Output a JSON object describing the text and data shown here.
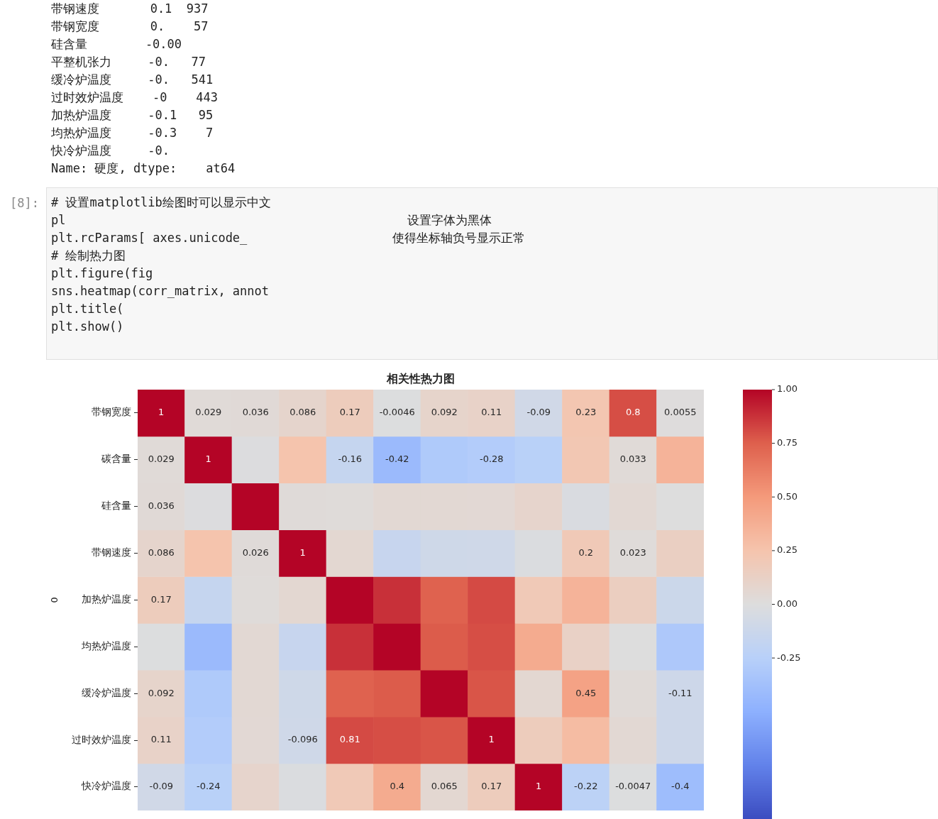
{
  "chart_data": {
    "type": "heatmap",
    "title": "相关性热力图",
    "ylabel": "0",
    "categories": [
      null,
      null,
      null,
      null,
      null,
      null,
      null,
      null,
      null,
      null,
      null,
      null
    ],
    "y_categories": [
      "带钢宽度",
      "碳含量",
      "硅含量",
      "带钢速度",
      "加热炉温度",
      "均热炉温度",
      "缓冷炉温度",
      "过时效炉温度",
      "快冷炉温度"
    ],
    "cells": [
      [
        1,
        0.029,
        0.036,
        0.086,
        0.17,
        -0.0046,
        0.092,
        0.11,
        -0.09,
        0.23,
        0.8,
        0.0055
      ],
      [
        0.029,
        1,
        -0.01,
        0.25,
        -0.16,
        -0.42,
        -0.3,
        -0.28,
        -0.24,
        0.22,
        0.033,
        0.35
      ],
      [
        0.036,
        -0.01,
        1,
        0.026,
        0.02,
        0.05,
        0.05,
        0.048,
        0.09,
        -0.03,
        0.05,
        0
      ],
      [
        0.086,
        0.25,
        0.026,
        1,
        0.064,
        -0.15,
        -0.1,
        -0.096,
        -0.02,
        0.2,
        0.023,
        0.14
      ],
      [
        0.17,
        -0.16,
        0.02,
        0.064,
        1,
        0.88,
        0.74,
        0.81,
        0.2,
        0.35,
        0.15,
        -0.12
      ],
      [
        -0.0046,
        -0.42,
        0.05,
        -0.15,
        0.88,
        1,
        0.76,
        0.8,
        0.4,
        0.12,
        0,
        -0.31
      ],
      [
        0.092,
        -0.3,
        0.05,
        -0.1,
        0.74,
        0.76,
        1,
        0.78,
        0.065,
        0.45,
        0.03,
        -0.11
      ],
      [
        0.11,
        -0.28,
        0.048,
        -0.096,
        0.81,
        0.8,
        0.78,
        1,
        0.17,
        0.3,
        0.05,
        -0.11
      ],
      [
        -0.09,
        -0.24,
        0.09,
        -0.02,
        0.2,
        0.4,
        0.065,
        0.17,
        1,
        -0.22,
        -0.0047,
        -0.4
      ]
    ],
    "cell_labels": [
      [
        "1",
        "0.029",
        "0.036",
        "0.086",
        "0.17",
        "-0.0046",
        "0.092",
        "0.11",
        "-0.09",
        "0.23",
        "0.8",
        "0.0055"
      ],
      [
        "0.029",
        "1",
        null,
        null,
        "-0.16",
        "-0.42",
        null,
        "-0.28",
        null,
        null,
        "0.033",
        null
      ],
      [
        "0.036",
        null,
        null,
        null,
        null,
        null,
        null,
        null,
        null,
        null,
        null,
        null
      ],
      [
        "0.086",
        null,
        "0.026",
        "1",
        null,
        null,
        null,
        null,
        null,
        "0.2",
        "0.023",
        null
      ],
      [
        "0.17",
        null,
        null,
        null,
        null,
        null,
        null,
        null,
        null,
        null,
        null,
        null
      ],
      [
        null,
        null,
        null,
        null,
        null,
        null,
        null,
        null,
        null,
        null,
        null,
        null
      ],
      [
        "0.092",
        null,
        null,
        null,
        null,
        null,
        null,
        null,
        null,
        "0.45",
        null,
        "-0.11"
      ],
      [
        "0.11",
        null,
        null,
        "-0.096",
        "0.81",
        null,
        null,
        "1",
        null,
        null,
        null,
        null
      ],
      [
        "-0.09",
        "-0.24",
        null,
        null,
        null,
        "0.4",
        "0.065",
        "0.17",
        "1",
        "-0.22",
        "-0.0047",
        "-0.4"
      ]
    ],
    "clim": [
      -1,
      1
    ],
    "cticks": [
      {
        "value": 1,
        "label": "1.00"
      },
      {
        "value": 0.75,
        "label": "0.75"
      },
      {
        "value": 0.5,
        "label": "0.50"
      },
      {
        "value": 0.25,
        "label": "0.25"
      },
      {
        "value": 0,
        "label": "0.00"
      },
      {
        "value": -0.25,
        "label": "-0.25"
      }
    ],
    "tick_labels": "y",
    "annotations": [
      "带钢速度       0.1  937",
      "带钢宽度       0.    57",
      "硅含量        -0.00",
      "平整机张力     -0.   77",
      "缓冷炉温度     -0.   541",
      "过时效炉温度    -0    443",
      "加热炉温度     -0.1   95",
      "均热炉温度     -0.3    7",
      "快冷炉温度     -0.",
      "Name: 硬度, dtype:    at64",
      "[8]:",
      "# 设置matplotlib绘图时可以显示中文",
      "pl                                               设置字体为黑体",
      "plt.rcParams[ axes.unicode_                    使得坐标轴负号显示正常",
      "# 绘制热力图",
      "plt.figure(fig",
      "sns.heatmap(corr_matrix, annot",
      "plt.title(",
      "plt.show()"
    ]
  }
}
